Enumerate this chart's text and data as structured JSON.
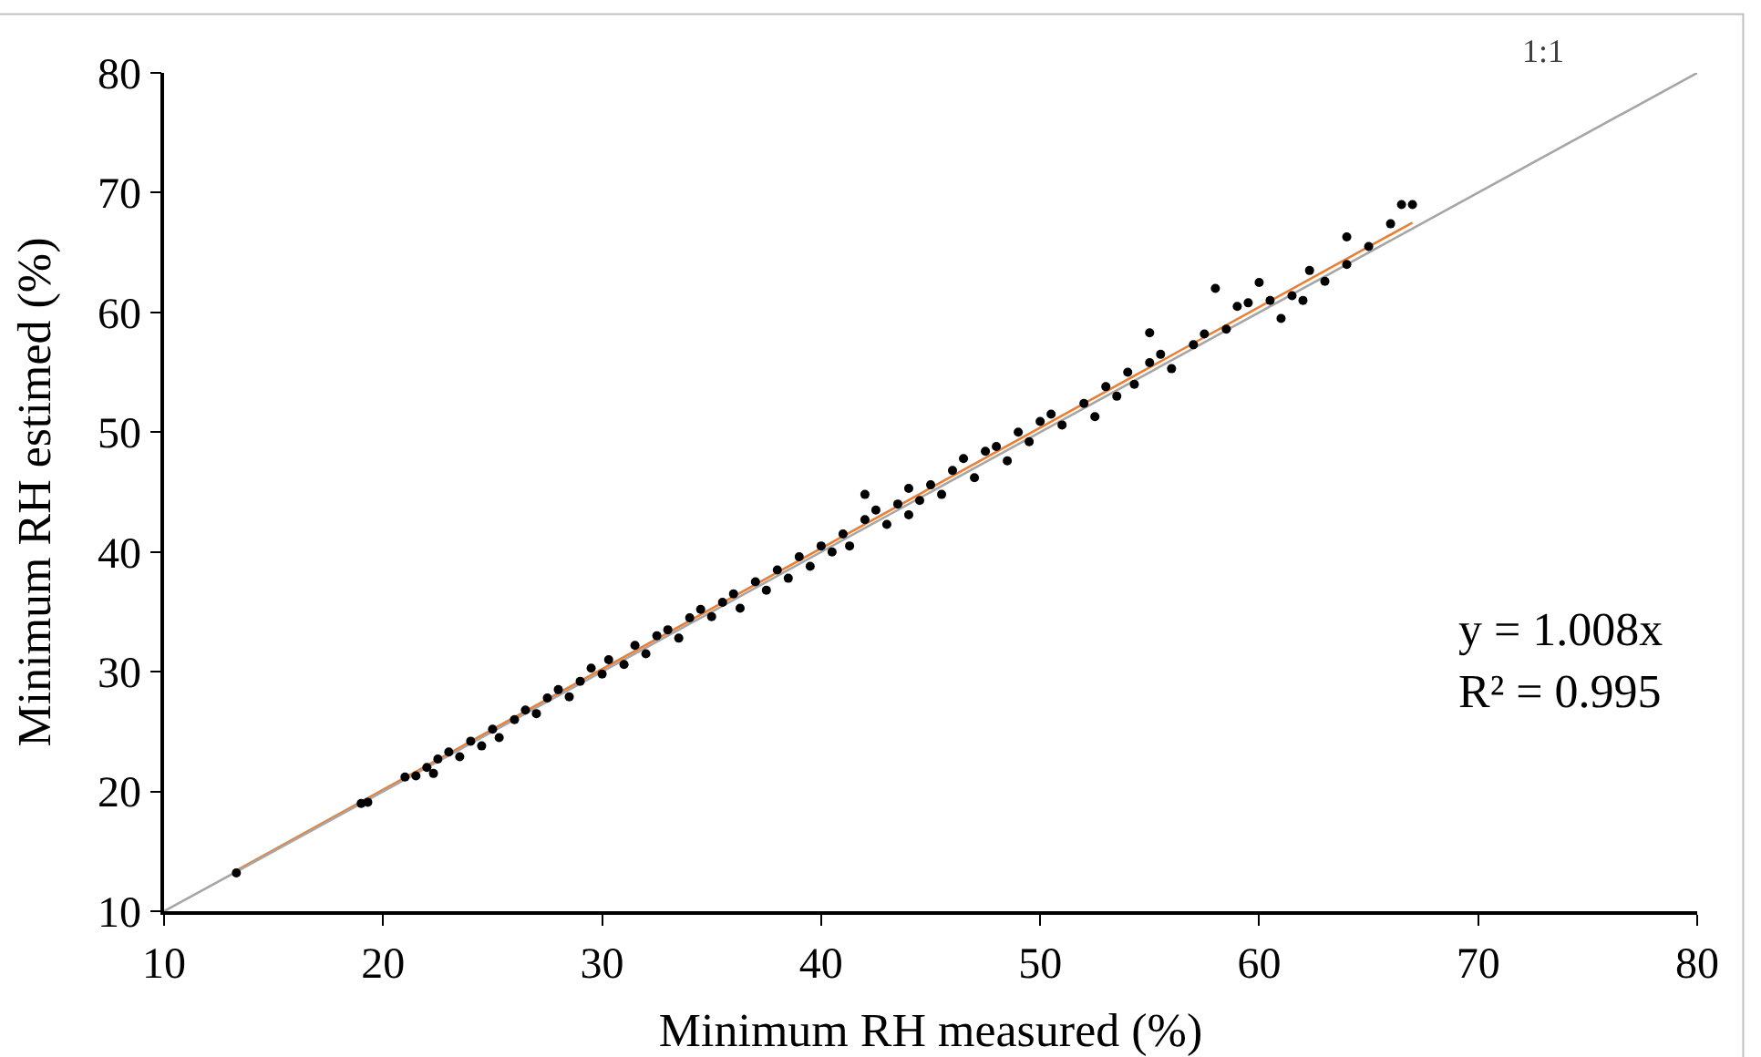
{
  "chart_data": {
    "type": "scatter",
    "xlabel": "Minimum RH measured (%)",
    "ylabel": "Minimum RH estimed (%)",
    "xlim": [
      10,
      80
    ],
    "ylim": [
      10,
      80
    ],
    "xticks": [
      10,
      20,
      30,
      40,
      50,
      60,
      70,
      80
    ],
    "yticks": [
      10,
      20,
      30,
      40,
      50,
      60,
      70,
      80
    ],
    "grid": false,
    "annotations": [
      "1:1",
      "y = 1.008x\nR² = 0.995"
    ],
    "series": [
      {
        "marker": "circle",
        "color": "#000000",
        "x": [
          13.3,
          19,
          19.3,
          21,
          21.5,
          22,
          22.3,
          22.5,
          23,
          23.5,
          24,
          24.5,
          25,
          25.3,
          26,
          26.5,
          27,
          27.5,
          28,
          28.5,
          29,
          29.5,
          30,
          30.3,
          31,
          31.5,
          32,
          32.5,
          33,
          33.5,
          34,
          34.5,
          35,
          35.5,
          36,
          36.3,
          37,
          37.5,
          38,
          38.5,
          39,
          39.5,
          40,
          40.5,
          41,
          41.3,
          42,
          42,
          42.5,
          43,
          43.5,
          44,
          44,
          44.5,
          45,
          45.5,
          46,
          46.5,
          47,
          47.5,
          48,
          48.5,
          49,
          49.5,
          50,
          50.5,
          51,
          52,
          52.5,
          53,
          53.5,
          54,
          54.3,
          55,
          55,
          55.5,
          56,
          57,
          57.5,
          58,
          58.5,
          59,
          59.5,
          60,
          60.5,
          61,
          61.5,
          62,
          62.3,
          63,
          64,
          64,
          65,
          66,
          66.5,
          67
        ],
        "values": [
          13.2,
          19,
          19.1,
          21.2,
          21.3,
          22,
          21.5,
          22.7,
          23.3,
          22.9,
          24.2,
          23.8,
          25.2,
          24.5,
          26,
          26.8,
          26.5,
          27.8,
          28.5,
          27.9,
          29.2,
          30.3,
          29.8,
          31,
          30.6,
          32.2,
          31.5,
          33,
          33.5,
          32.8,
          34.5,
          35.2,
          34.6,
          35.8,
          36.5,
          35.3,
          37.5,
          36.8,
          38.5,
          37.8,
          39.6,
          38.8,
          40.5,
          40,
          41.5,
          40.5,
          42.7,
          44.8,
          43.5,
          42.3,
          44,
          45.3,
          43.1,
          44.3,
          45.6,
          44.8,
          46.8,
          47.8,
          46.2,
          48.4,
          48.8,
          47.6,
          50,
          49.2,
          50.9,
          51.5,
          50.6,
          52.4,
          51.3,
          53.8,
          53,
          55,
          54,
          55.8,
          58.3,
          56.5,
          55.3,
          57.3,
          58.2,
          62,
          58.6,
          60.5,
          60.8,
          62.5,
          61,
          59.5,
          61.4,
          61,
          63.5,
          62.6,
          64,
          66.3,
          65.5,
          67.4,
          69,
          69
        ]
      },
      {
        "type": "line",
        "color": "#ed7d31",
        "x": [
          13.3,
          67
        ],
        "values": [
          13.4,
          67.5
        ]
      },
      {
        "type": "line",
        "color": "#a6a6a6",
        "x": [
          10,
          80
        ],
        "values": [
          10,
          80
        ]
      }
    ]
  }
}
